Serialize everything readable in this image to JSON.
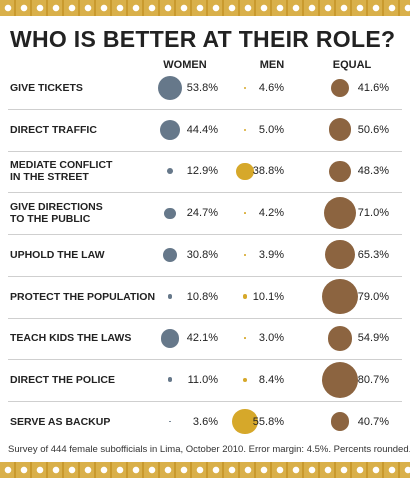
{
  "chart_data": {
    "type": "bubble-table",
    "title": "WHO IS BETTER AT THEIR ROLE?",
    "categories": [
      "GIVE TICKETS",
      "DIRECT TRAFFIC",
      "MEDIATE CONFLICT\nIN THE STREET",
      "GIVE DIRECTIONS\nTO THE PUBLIC",
      "UPHOLD THE LAW",
      "PROTECT THE POPULATION",
      "TEACH KIDS THE LAWS",
      "DIRECT THE POLICE",
      "SERVE AS BACKUP"
    ],
    "series": [
      {
        "name": "WOMEN",
        "color": "#66788a",
        "values": [
          53.8,
          44.4,
          12.9,
          24.7,
          30.8,
          10.8,
          42.1,
          11.0,
          3.6
        ],
        "value_labels": [
          "53.8%",
          "44.4%",
          "12.9%",
          "24.7%",
          "30.8%",
          "10.8%",
          "42.1%",
          "11.0%",
          "3.6%"
        ]
      },
      {
        "name": "MEN",
        "color": "#d6a82a",
        "values": [
          4.6,
          5.0,
          38.8,
          4.2,
          3.9,
          10.1,
          3.0,
          8.4,
          55.8
        ],
        "value_labels": [
          "4.6%",
          "5.0%",
          "38.8%",
          "4.2%",
          "3.9%",
          "10.1%",
          "3.0%",
          "8.4%",
          "55.8%"
        ]
      },
      {
        "name": "EQUAL",
        "color": "#8c6440",
        "values": [
          41.6,
          50.6,
          48.3,
          71.0,
          65.3,
          79.0,
          54.9,
          80.7,
          40.7
        ],
        "value_labels": [
          "41.6%",
          "50.6%",
          "48.3%",
          "71.0%",
          "65.3%",
          "79.0%",
          "54.9%",
          "80.7%",
          "40.7%"
        ]
      }
    ],
    "note": "Survey of 444 female subofficials in Lima, October 2010. Error margin: 4.5%. Percents rounded."
  }
}
